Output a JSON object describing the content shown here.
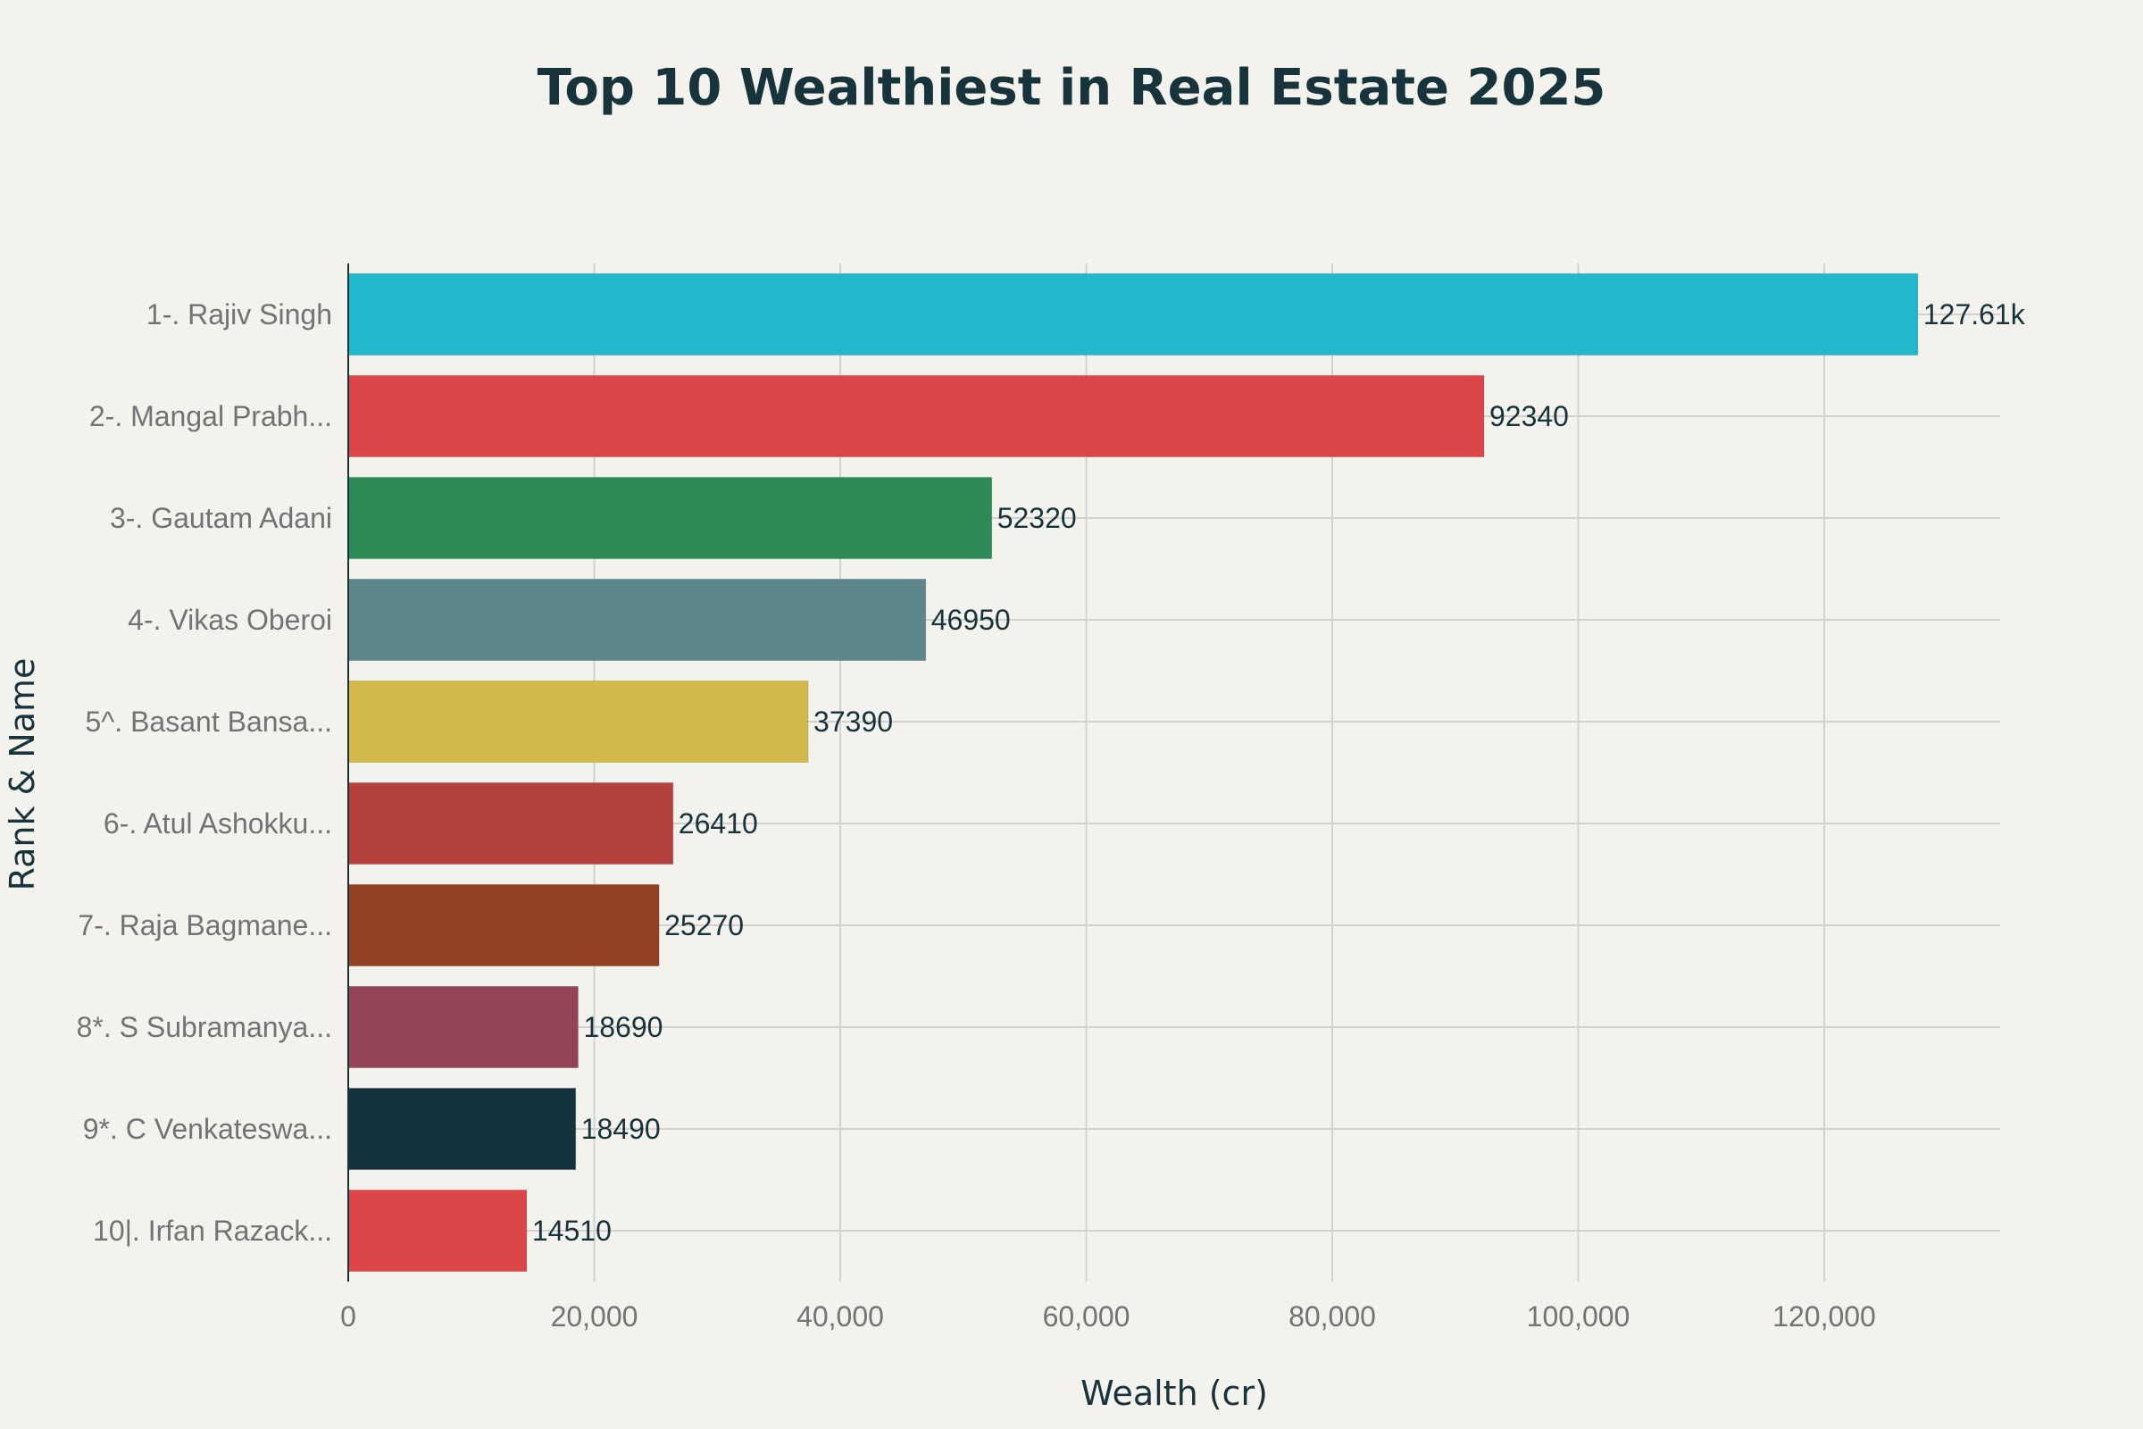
{
  "chart_data": {
    "type": "bar",
    "orientation": "horizontal",
    "title": "Top 10 Wealthiest in Real Estate 2025",
    "xlabel": "Wealth (cr)",
    "ylabel": "Rank & Name",
    "categories": [
      "1-. Rajiv Singh",
      "2-. Mangal Prabh...",
      "3-. Gautam Adani",
      "4-. Vikas Oberoi",
      "5^. Basant Bansa...",
      "6-. Atul Ashokku...",
      "7-. Raja Bagmane...",
      "8*. S Subramanya...",
      "9*. C Venkateswa...",
      "10|. Irfan Razack..."
    ],
    "values": [
      127610,
      92340,
      52320,
      46950,
      37390,
      26410,
      25270,
      18690,
      18490,
      14510
    ],
    "value_labels": [
      "127.61k",
      "92340",
      "52320",
      "46950",
      "37390",
      "26410",
      "25270",
      "18690",
      "18490",
      "14510"
    ],
    "colors": [
      "#21b8cd",
      "#db4649",
      "#2e8b57",
      "#5d878b",
      "#d3b94b",
      "#b5413f",
      "#944225",
      "#944455",
      "#14333c",
      "#db4649"
    ],
    "xlim": [
      0,
      134300
    ],
    "xticks": [
      0,
      20000,
      40000,
      60000,
      80000,
      100000,
      120000
    ],
    "xtick_labels": [
      "0",
      "20,000",
      "40,000",
      "60,000",
      "80,000",
      "100,000",
      "120,000"
    ],
    "grid": true,
    "legend": "none"
  }
}
